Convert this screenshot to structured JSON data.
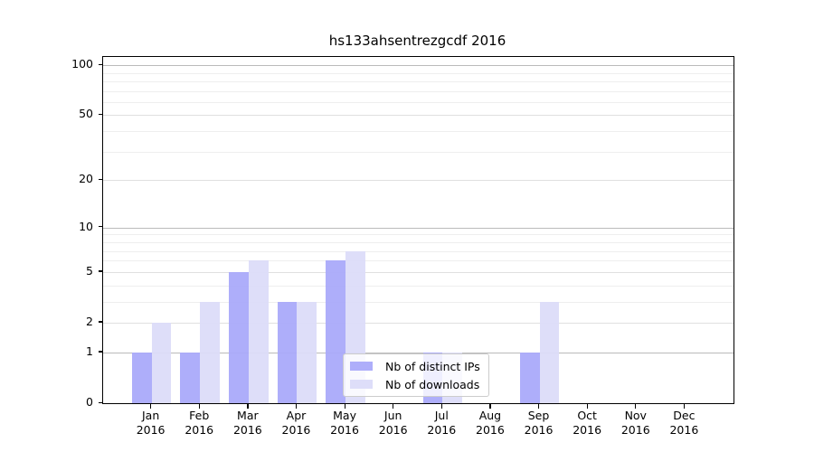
{
  "chart_data": {
    "type": "bar",
    "title": "hs133ahsentrezgcdf 2016",
    "categories": [
      "Jan",
      "Feb",
      "Mar",
      "Apr",
      "May",
      "Jun",
      "Jul",
      "Aug",
      "Sep",
      "Oct",
      "Nov",
      "Dec"
    ],
    "category_sublabel": "2016",
    "series": [
      {
        "name": "Nb of distinct IPs",
        "color": "#a9a9fa",
        "values": [
          1,
          1,
          5,
          3,
          6,
          0,
          1,
          0,
          1,
          0,
          0,
          0
        ]
      },
      {
        "name": "Nb of downloads",
        "color": "#dcdcf9",
        "values": [
          2,
          3,
          6,
          3,
          7,
          0,
          1,
          0,
          3,
          0,
          0,
          0
        ]
      }
    ],
    "xlabel": "",
    "ylabel": "",
    "y_scale": "log1p",
    "y_ticks": [
      0,
      1,
      2,
      5,
      10,
      20,
      50,
      100
    ],
    "y_minor_ticks": [
      3,
      4,
      6,
      7,
      8,
      9,
      30,
      40,
      60,
      70,
      80,
      90
    ],
    "ylim": [
      0,
      112
    ],
    "grid": true,
    "legend_position": "lower center"
  },
  "colors": {
    "bar_ips": "#a9a9fa",
    "bar_downloads": "#dcdcf9",
    "grid_decade": "#bbbbbb",
    "grid_major": "#e0e0e0",
    "grid_minor": "#eeeeee",
    "spine": "#000000",
    "legend_border": "#cccccc",
    "text": "#000000"
  }
}
